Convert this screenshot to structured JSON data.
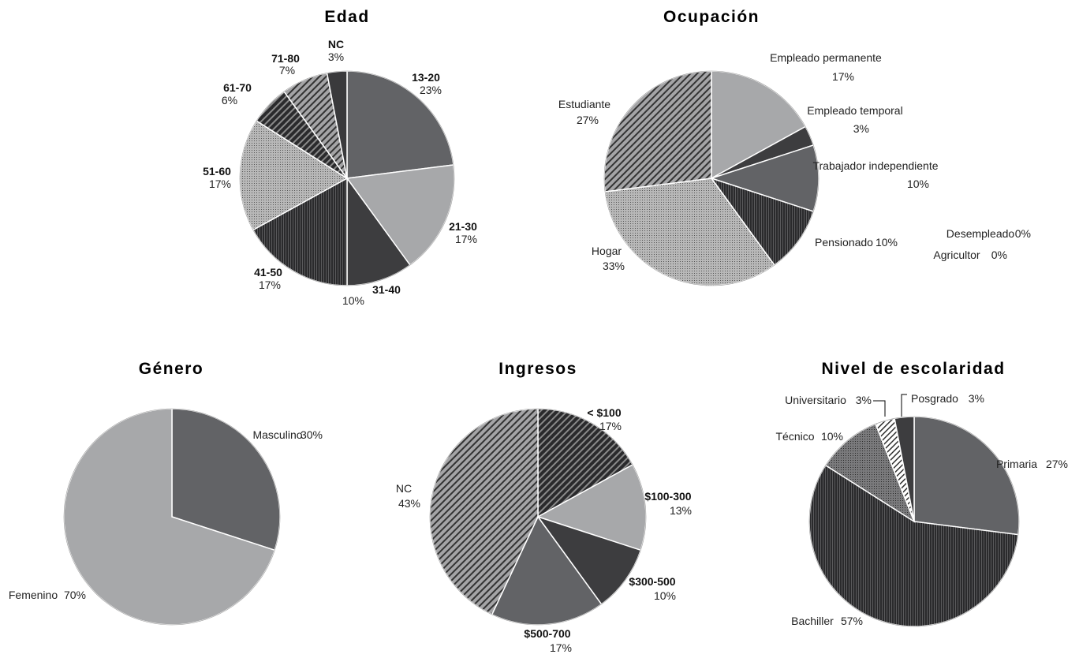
{
  "chart_data": [
    {
      "type": "pie",
      "title": "Edad",
      "slices": [
        {
          "label": "13-20",
          "value": 23,
          "pct_label": "23%",
          "color": "#626366",
          "pattern": "solid"
        },
        {
          "label": "21-30",
          "value": 17,
          "pct_label": "17%",
          "color": "#a7a8aa",
          "pattern": "solid"
        },
        {
          "label": "31-40",
          "value": 10,
          "pct_label": "10%",
          "color": "#3d3d3f",
          "pattern": "solid"
        },
        {
          "label": "41-50",
          "value": 17,
          "pct_label": "17%",
          "color": "#2a2a2c",
          "pattern": "vlines"
        },
        {
          "label": "51-60",
          "value": 17,
          "pct_label": "17%",
          "color": "#b5b5b5",
          "pattern": "dots"
        },
        {
          "label": "61-70",
          "value": 6,
          "pct_label": "6%",
          "color": "#2a2a2c",
          "pattern": "diag-dark"
        },
        {
          "label": "71-80",
          "value": 7,
          "pct_label": "7%",
          "color": "#8a8a8c",
          "pattern": "diag-light"
        },
        {
          "label": "NC",
          "value": 3,
          "pct_label": "3%",
          "color": "#3a3a3c",
          "pattern": "solid"
        }
      ]
    },
    {
      "type": "pie",
      "title": "Ocupación",
      "slices": [
        {
          "label": "Empleado permanente",
          "value": 17,
          "pct_label": "17%",
          "color": "#a7a8aa",
          "pattern": "solid"
        },
        {
          "label": "Empleado temporal",
          "value": 3,
          "pct_label": "3%",
          "color": "#3d3d3f",
          "pattern": "solid"
        },
        {
          "label": "Trabajador independiente",
          "value": 10,
          "pct_label": "10%",
          "color": "#626366",
          "pattern": "solid"
        },
        {
          "label": "Pensionado",
          "value": 10,
          "pct_label": "10%",
          "color": "#2a2a2c",
          "pattern": "vlines"
        },
        {
          "label": "Hogar",
          "value": 33,
          "pct_label": "33%",
          "color": "#b5b5b5",
          "pattern": "dots"
        },
        {
          "label": "Estudiante",
          "value": 27,
          "pct_label": "27%",
          "color": "#8a8a8c",
          "pattern": "diag-light"
        },
        {
          "label": "Desempleado",
          "value": 0,
          "pct_label": "0%"
        },
        {
          "label": "Agricultor",
          "value": 0,
          "pct_label": "0%"
        }
      ]
    },
    {
      "type": "pie",
      "title": "Género",
      "slices": [
        {
          "label": "Masculino",
          "value": 30,
          "pct_label": "30%",
          "color": "#626366",
          "pattern": "solid"
        },
        {
          "label": "Femenino",
          "value": 70,
          "pct_label": "70%",
          "color": "#a7a8aa",
          "pattern": "solid"
        }
      ]
    },
    {
      "type": "pie",
      "title": "Ingresos",
      "slices": [
        {
          "label": "< $100",
          "value": 17,
          "pct_label": "17%",
          "color": "#2a2a2c",
          "pattern": "diag-dark"
        },
        {
          "label": "$100-300",
          "value": 13,
          "pct_label": "13%",
          "color": "#a7a8aa",
          "pattern": "solid"
        },
        {
          "label": "$300-500",
          "value": 10,
          "pct_label": "10%",
          "color": "#3d3d3f",
          "pattern": "solid"
        },
        {
          "label": "$500-700",
          "value": 17,
          "pct_label": "17%",
          "color": "#626366",
          "pattern": "solid"
        },
        {
          "label": "NC",
          "value": 43,
          "pct_label": "43%",
          "color": "#8a8a8c",
          "pattern": "diag-light"
        }
      ]
    },
    {
      "type": "pie",
      "title": "Nivel de escolaridad",
      "slices": [
        {
          "label": "Primaria",
          "value": 27,
          "pct_label": "27%",
          "color": "#626366",
          "pattern": "solid"
        },
        {
          "label": "Bachiller",
          "value": 57,
          "pct_label": "57%",
          "color": "#2a2a2c",
          "pattern": "vlines"
        },
        {
          "label": "Técnico",
          "value": 10,
          "pct_label": "10%",
          "color": "#6a6a6c",
          "pattern": "dots-dark"
        },
        {
          "label": "Universitario",
          "value": 3,
          "pct_label": "3%",
          "color": "#ffffff",
          "pattern": "diag-white"
        },
        {
          "label": "Posgrado",
          "value": 3,
          "pct_label": "3%",
          "color": "#3d3d3f",
          "pattern": "solid"
        }
      ]
    }
  ]
}
